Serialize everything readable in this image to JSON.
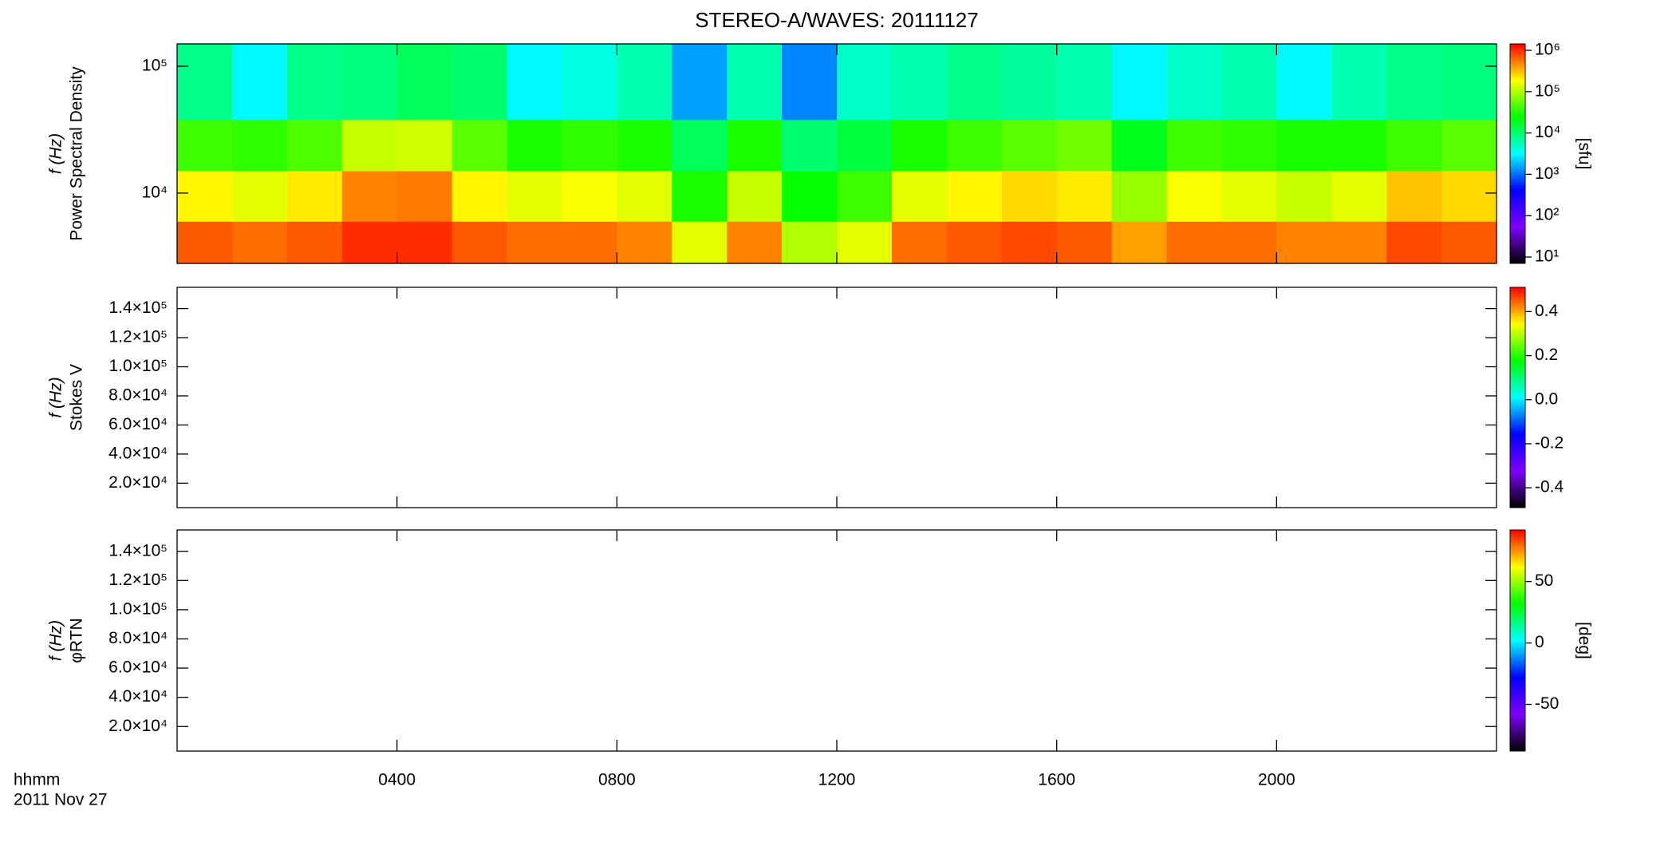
{
  "title": "STEREO-A/WAVES: 20111127",
  "time_label": "hhmm",
  "date_label": "2011 Nov 27",
  "xlim": [
    0,
    1440
  ],
  "xticks": [
    {
      "value": 240,
      "label": "0400"
    },
    {
      "value": 480,
      "label": "0800"
    },
    {
      "value": 720,
      "label": "1200"
    },
    {
      "value": 960,
      "label": "1600"
    },
    {
      "value": 1200,
      "label": "2000"
    }
  ],
  "colormap": [
    "#000000",
    "#7f00ff",
    "#0000ff",
    "#00ffff",
    "#00ff00",
    "#ffff00",
    "#ff0000"
  ],
  "chart_data": [
    {
      "type": "heatmap",
      "ylabel": [
        "Power Spectral Density",
        "f (Hz)"
      ],
      "log": true,
      "ylim": [
        2790,
        150000
      ],
      "yticks": [
        {
          "value": 10000,
          "label": "10⁴"
        },
        {
          "value": 100000,
          "label": "10⁵"
        }
      ],
      "clog": true,
      "clim": [
        7,
        1430000
      ],
      "cticks": [
        {
          "value": 10,
          "label": "10¹"
        },
        {
          "value": 100,
          "label": "10²"
        },
        {
          "value": 1000,
          "label": "10³"
        },
        {
          "value": 10000,
          "label": "10⁴"
        },
        {
          "value": 100000,
          "label": "10⁵"
        },
        {
          "value": 1000000,
          "label": "10⁶"
        }
      ],
      "clabel": "[sfu]",
      "xbins": [
        0,
        60,
        120,
        180,
        240,
        300,
        360,
        420,
        480,
        540,
        600,
        660,
        720,
        780,
        840,
        900,
        960,
        1020,
        1080,
        1140,
        1200,
        1260,
        1320,
        1380,
        1440
      ],
      "ybins": [
        2790,
        6000,
        15000,
        38000,
        150000
      ],
      "values": [
        [
          700000,
          600000,
          700000,
          1000000,
          1000000,
          700000,
          600000,
          600000,
          500000,
          150000,
          500000,
          100000,
          150000,
          600000,
          700000,
          800000,
          700000,
          400000,
          600000,
          600000,
          500000,
          500000,
          800000,
          700000
        ],
        [
          200000,
          150000,
          220000,
          500000,
          550000,
          200000,
          150000,
          180000,
          150000,
          30000,
          120000,
          25000,
          40000,
          150000,
          200000,
          250000,
          220000,
          80000,
          180000,
          150000,
          120000,
          150000,
          300000,
          250000
        ],
        [
          40000,
          35000,
          45000,
          120000,
          130000,
          50000,
          30000,
          35000,
          30000,
          12000,
          30000,
          10000,
          15000,
          30000,
          40000,
          50000,
          60000,
          20000,
          40000,
          35000,
          30000,
          30000,
          40000,
          50000
        ],
        [
          8000,
          3000,
          8000,
          9000,
          12000,
          10000,
          3000,
          4000,
          6000,
          1500,
          6000,
          1200,
          5000,
          6000,
          8000,
          7000,
          6000,
          3000,
          5000,
          6000,
          3000,
          6000,
          8000,
          9000
        ]
      ]
    },
    {
      "type": "heatmap",
      "ylabel": [
        "Stokes V",
        "f (Hz)"
      ],
      "log": false,
      "ylim": [
        3200,
        154600
      ],
      "yticks": [
        {
          "value": 20000,
          "label": "2.0×10⁴"
        },
        {
          "value": 40000,
          "label": "4.0×10⁴"
        },
        {
          "value": 60000,
          "label": "6.0×10⁴"
        },
        {
          "value": 80000,
          "label": "8.0×10⁴"
        },
        {
          "value": 100000,
          "label": "1.0×10⁵"
        },
        {
          "value": 120000,
          "label": "1.2×10⁵"
        },
        {
          "value": 140000,
          "label": "1.4×10⁵"
        }
      ],
      "clog": false,
      "clim": [
        -0.49,
        0.51
      ],
      "cticks": [
        -0.4,
        -0.2,
        {
          "value": 0,
          "label": "0.0"
        },
        0.2,
        0.4
      ]
    },
    {
      "type": "heatmap",
      "ylabel": [
        "φRTN",
        "f (Hz)"
      ],
      "log": false,
      "ylim": [
        3200,
        154600
      ],
      "yticks": [
        {
          "value": 20000,
          "label": "2.0×10⁴"
        },
        {
          "value": 40000,
          "label": "4.0×10⁴"
        },
        {
          "value": 60000,
          "label": "6.0×10⁴"
        },
        {
          "value": 80000,
          "label": "8.0×10⁴"
        },
        {
          "value": 100000,
          "label": "1.0×10⁵"
        },
        {
          "value": 120000,
          "label": "1.2×10⁵"
        },
        {
          "value": 140000,
          "label": "1.4×10⁵"
        }
      ],
      "clog": false,
      "clim": [
        -88,
        92
      ],
      "cticks": [
        -50,
        0,
        50
      ],
      "clabel": "[deg]"
    }
  ]
}
